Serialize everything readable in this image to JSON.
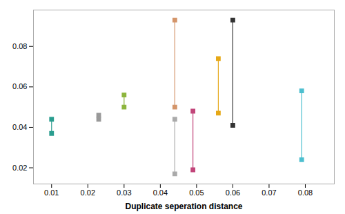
{
  "chart_data": {
    "type": "segment",
    "x": [
      0.01,
      0.023,
      0.03,
      0.044,
      0.044,
      0.049,
      0.056,
      0.06,
      0.079
    ],
    "y1": [
      0.044,
      0.046,
      0.056,
      0.044,
      0.093,
      0.048,
      0.074,
      0.093,
      0.058
    ],
    "y2": [
      0.037,
      0.044,
      0.05,
      0.017,
      0.05,
      0.019,
      0.047,
      0.041,
      0.024
    ],
    "colors": [
      "#2a9d8f",
      "#999999",
      "#8db53d",
      "#aaaaaa",
      "#d4956a",
      "#c2457a",
      "#e6a817",
      "#333333",
      "#4dbfcf"
    ],
    "xlabel": "Duplicate seperation distance",
    "xlim": [
      0.005,
      0.088
    ],
    "ylim": [
      0.012,
      0.098
    ],
    "xticks": [
      0.01,
      0.02,
      0.03,
      0.04,
      0.05,
      0.06,
      0.07,
      0.08
    ],
    "yticks": [
      0.02,
      0.04,
      0.06,
      0.08
    ],
    "marker": "square",
    "grid": false
  }
}
